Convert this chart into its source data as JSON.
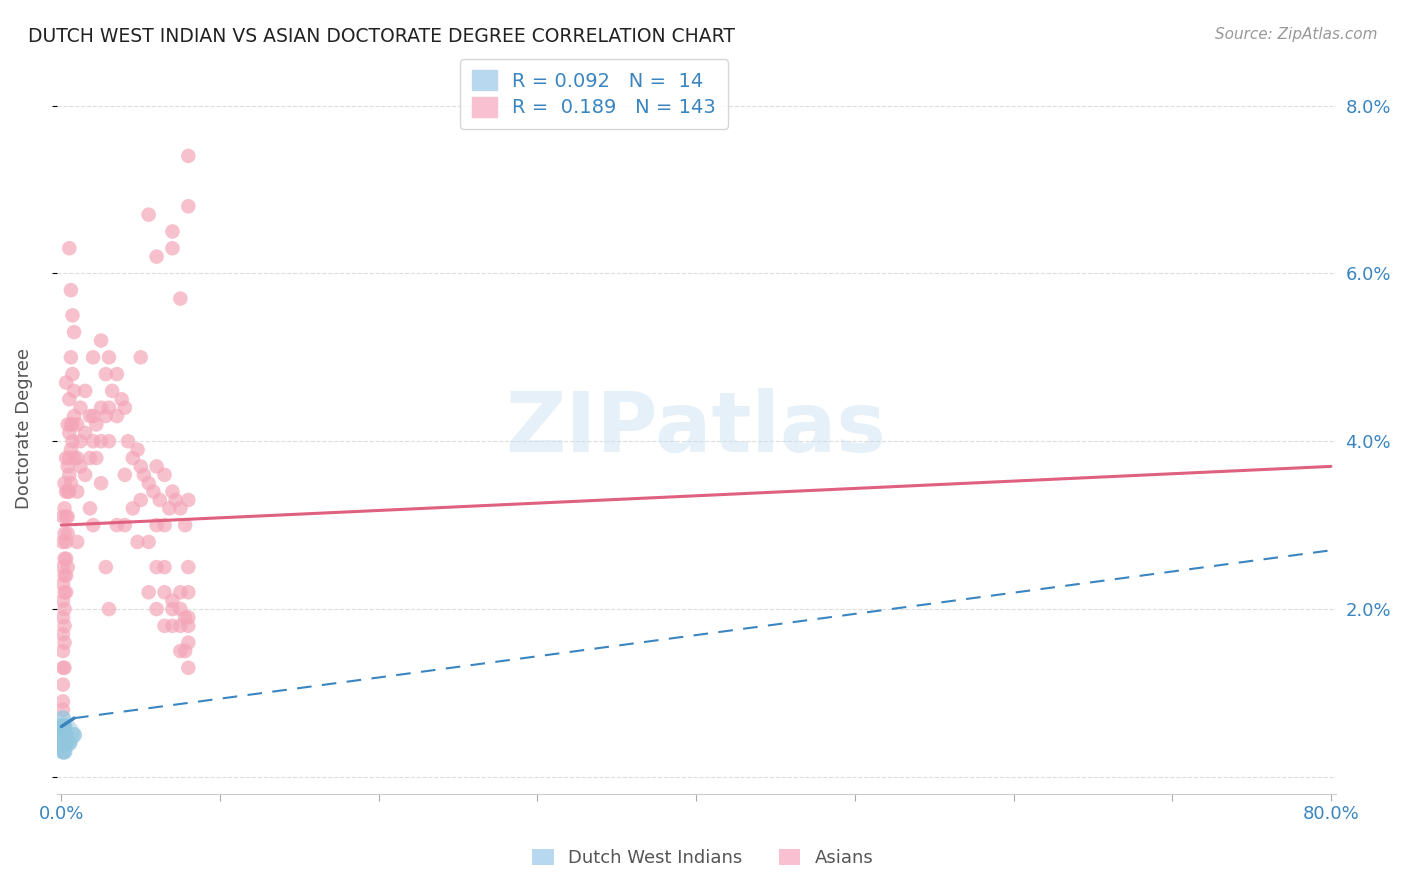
{
  "title": "DUTCH WEST INDIAN VS ASIAN DOCTORATE DEGREE CORRELATION CHART",
  "source": "Source: ZipAtlas.com",
  "ylabel": "Doctorate Degree",
  "xlim": [
    0.0,
    0.8
  ],
  "ylim": [
    -0.002,
    0.085
  ],
  "blue_color": "#92c5de",
  "pink_color": "#f4a6b8",
  "blue_line_color": "#3a85c0",
  "pink_line_color": "#e06080",
  "blue_scatter": [
    [
      0.001,
      0.007
    ],
    [
      0.001,
      0.006
    ],
    [
      0.001,
      0.0055
    ],
    [
      0.001,
      0.005
    ],
    [
      0.001,
      0.004
    ],
    [
      0.001,
      0.003
    ],
    [
      0.002,
      0.006
    ],
    [
      0.002,
      0.005
    ],
    [
      0.002,
      0.004
    ],
    [
      0.002,
      0.003
    ],
    [
      0.003,
      0.005
    ],
    [
      0.003,
      0.004
    ],
    [
      0.005,
      0.004
    ],
    [
      0.008,
      0.005
    ]
  ],
  "pink_scatter": [
    [
      0.001,
      0.031
    ],
    [
      0.001,
      0.028
    ],
    [
      0.001,
      0.025
    ],
    [
      0.001,
      0.023
    ],
    [
      0.001,
      0.021
    ],
    [
      0.001,
      0.019
    ],
    [
      0.001,
      0.017
    ],
    [
      0.001,
      0.015
    ],
    [
      0.001,
      0.013
    ],
    [
      0.001,
      0.011
    ],
    [
      0.002,
      0.035
    ],
    [
      0.002,
      0.032
    ],
    [
      0.002,
      0.029
    ],
    [
      0.002,
      0.026
    ],
    [
      0.002,
      0.024
    ],
    [
      0.002,
      0.022
    ],
    [
      0.002,
      0.02
    ],
    [
      0.002,
      0.018
    ],
    [
      0.003,
      0.047
    ],
    [
      0.003,
      0.038
    ],
    [
      0.003,
      0.034
    ],
    [
      0.003,
      0.031
    ],
    [
      0.003,
      0.028
    ],
    [
      0.003,
      0.026
    ],
    [
      0.003,
      0.024
    ],
    [
      0.004,
      0.042
    ],
    [
      0.004,
      0.037
    ],
    [
      0.004,
      0.034
    ],
    [
      0.004,
      0.031
    ],
    [
      0.004,
      0.029
    ],
    [
      0.005,
      0.063
    ],
    [
      0.005,
      0.045
    ],
    [
      0.005,
      0.041
    ],
    [
      0.005,
      0.038
    ],
    [
      0.005,
      0.036
    ],
    [
      0.005,
      0.034
    ],
    [
      0.006,
      0.058
    ],
    [
      0.006,
      0.05
    ],
    [
      0.006,
      0.042
    ],
    [
      0.006,
      0.039
    ],
    [
      0.007,
      0.055
    ],
    [
      0.007,
      0.048
    ],
    [
      0.007,
      0.042
    ],
    [
      0.007,
      0.04
    ],
    [
      0.008,
      0.053
    ],
    [
      0.008,
      0.046
    ],
    [
      0.008,
      0.043
    ],
    [
      0.01,
      0.042
    ],
    [
      0.01,
      0.038
    ],
    [
      0.01,
      0.034
    ],
    [
      0.012,
      0.044
    ],
    [
      0.012,
      0.04
    ],
    [
      0.012,
      0.037
    ],
    [
      0.015,
      0.046
    ],
    [
      0.015,
      0.041
    ],
    [
      0.015,
      0.036
    ],
    [
      0.018,
      0.043
    ],
    [
      0.018,
      0.038
    ],
    [
      0.02,
      0.05
    ],
    [
      0.02,
      0.043
    ],
    [
      0.02,
      0.04
    ],
    [
      0.022,
      0.042
    ],
    [
      0.022,
      0.038
    ],
    [
      0.025,
      0.052
    ],
    [
      0.025,
      0.044
    ],
    [
      0.025,
      0.04
    ],
    [
      0.028,
      0.048
    ],
    [
      0.028,
      0.043
    ],
    [
      0.03,
      0.05
    ],
    [
      0.03,
      0.044
    ],
    [
      0.03,
      0.04
    ],
    [
      0.032,
      0.046
    ],
    [
      0.035,
      0.048
    ],
    [
      0.035,
      0.043
    ],
    [
      0.038,
      0.045
    ],
    [
      0.04,
      0.044
    ],
    [
      0.04,
      0.036
    ],
    [
      0.042,
      0.04
    ],
    [
      0.045,
      0.038
    ],
    [
      0.048,
      0.039
    ],
    [
      0.05,
      0.037
    ],
    [
      0.05,
      0.033
    ],
    [
      0.052,
      0.036
    ],
    [
      0.055,
      0.035
    ],
    [
      0.055,
      0.067
    ],
    [
      0.058,
      0.034
    ],
    [
      0.06,
      0.037
    ],
    [
      0.06,
      0.03
    ],
    [
      0.06,
      0.025
    ],
    [
      0.06,
      0.062
    ],
    [
      0.062,
      0.033
    ],
    [
      0.065,
      0.036
    ],
    [
      0.065,
      0.022
    ],
    [
      0.065,
      0.018
    ],
    [
      0.068,
      0.032
    ],
    [
      0.07,
      0.034
    ],
    [
      0.07,
      0.021
    ],
    [
      0.07,
      0.063
    ],
    [
      0.07,
      0.065
    ],
    [
      0.072,
      0.033
    ],
    [
      0.075,
      0.032
    ],
    [
      0.075,
      0.022
    ],
    [
      0.075,
      0.018
    ],
    [
      0.075,
      0.057
    ],
    [
      0.078,
      0.03
    ],
    [
      0.078,
      0.019
    ],
    [
      0.08,
      0.033
    ],
    [
      0.08,
      0.022
    ],
    [
      0.08,
      0.019
    ],
    [
      0.08,
      0.016
    ],
    [
      0.08,
      0.074
    ],
    [
      0.08,
      0.068
    ],
    [
      0.08,
      0.025
    ],
    [
      0.08,
      0.013
    ],
    [
      0.078,
      0.015
    ],
    [
      0.05,
      0.05
    ],
    [
      0.03,
      0.02
    ],
    [
      0.025,
      0.035
    ],
    [
      0.018,
      0.032
    ],
    [
      0.01,
      0.028
    ],
    [
      0.008,
      0.038
    ],
    [
      0.006,
      0.035
    ],
    [
      0.004,
      0.025
    ],
    [
      0.003,
      0.022
    ],
    [
      0.002,
      0.016
    ],
    [
      0.002,
      0.013
    ],
    [
      0.001,
      0.009
    ],
    [
      0.001,
      0.008
    ],
    [
      0.04,
      0.03
    ],
    [
      0.045,
      0.032
    ],
    [
      0.055,
      0.028
    ],
    [
      0.06,
      0.02
    ],
    [
      0.065,
      0.025
    ],
    [
      0.07,
      0.018
    ],
    [
      0.075,
      0.015
    ],
    [
      0.08,
      0.018
    ],
    [
      0.075,
      0.02
    ],
    [
      0.07,
      0.02
    ],
    [
      0.065,
      0.03
    ],
    [
      0.055,
      0.022
    ],
    [
      0.048,
      0.028
    ],
    [
      0.035,
      0.03
    ],
    [
      0.028,
      0.025
    ],
    [
      0.02,
      0.03
    ]
  ],
  "background_color": "#ffffff",
  "grid_color": "#dddddd",
  "watermark": "ZIPatlas"
}
